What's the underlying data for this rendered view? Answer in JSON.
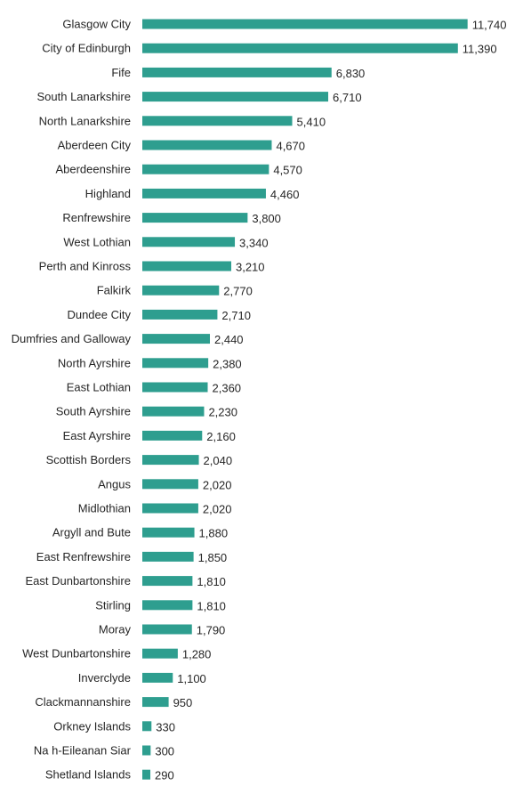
{
  "chart_data": {
    "type": "bar",
    "orientation": "horizontal",
    "bar_color": "#2e9e8f",
    "title": "",
    "xlabel": "",
    "ylabel": "",
    "grid": false,
    "categories": [
      "Glasgow City",
      "City of Edinburgh",
      "Fife",
      "South Lanarkshire",
      "North Lanarkshire",
      "Aberdeen City",
      "Aberdeenshire",
      "Highland",
      "Renfrewshire",
      "West Lothian",
      "Perth and Kinross",
      "Falkirk",
      "Dundee City",
      "Dumfries and Galloway",
      "North Ayrshire",
      "East Lothian",
      "South Ayrshire",
      "East Ayrshire",
      "Scottish Borders",
      "Angus",
      "Midlothian",
      "Argyll and Bute",
      "East Renfrewshire",
      "East Dunbartonshire",
      "Stirling",
      "Moray",
      "West Dunbartonshire",
      "Inverclyde",
      "Clackmannanshire",
      "Orkney Islands",
      "Na h-Eileanan Siar",
      "Shetland Islands"
    ],
    "values": [
      11740,
      11390,
      6830,
      6710,
      5410,
      4670,
      4570,
      4460,
      3800,
      3340,
      3210,
      2770,
      2710,
      2440,
      2380,
      2360,
      2230,
      2160,
      2040,
      2020,
      2020,
      1880,
      1850,
      1810,
      1810,
      1790,
      1280,
      1100,
      950,
      330,
      300,
      290
    ],
    "value_labels": [
      "11,740",
      "11,390",
      "6,830",
      "6,710",
      "5,410",
      "4,670",
      "4,570",
      "4,460",
      "3,800",
      "3,340",
      "3,210",
      "2,770",
      "2,710",
      "2,440",
      "2,380",
      "2,360",
      "2,230",
      "2,160",
      "2,040",
      "2,020",
      "2,020",
      "1,880",
      "1,850",
      "1,810",
      "1,810",
      "1,790",
      "1,280",
      "1,100",
      "950",
      "330",
      "300",
      "290"
    ]
  }
}
